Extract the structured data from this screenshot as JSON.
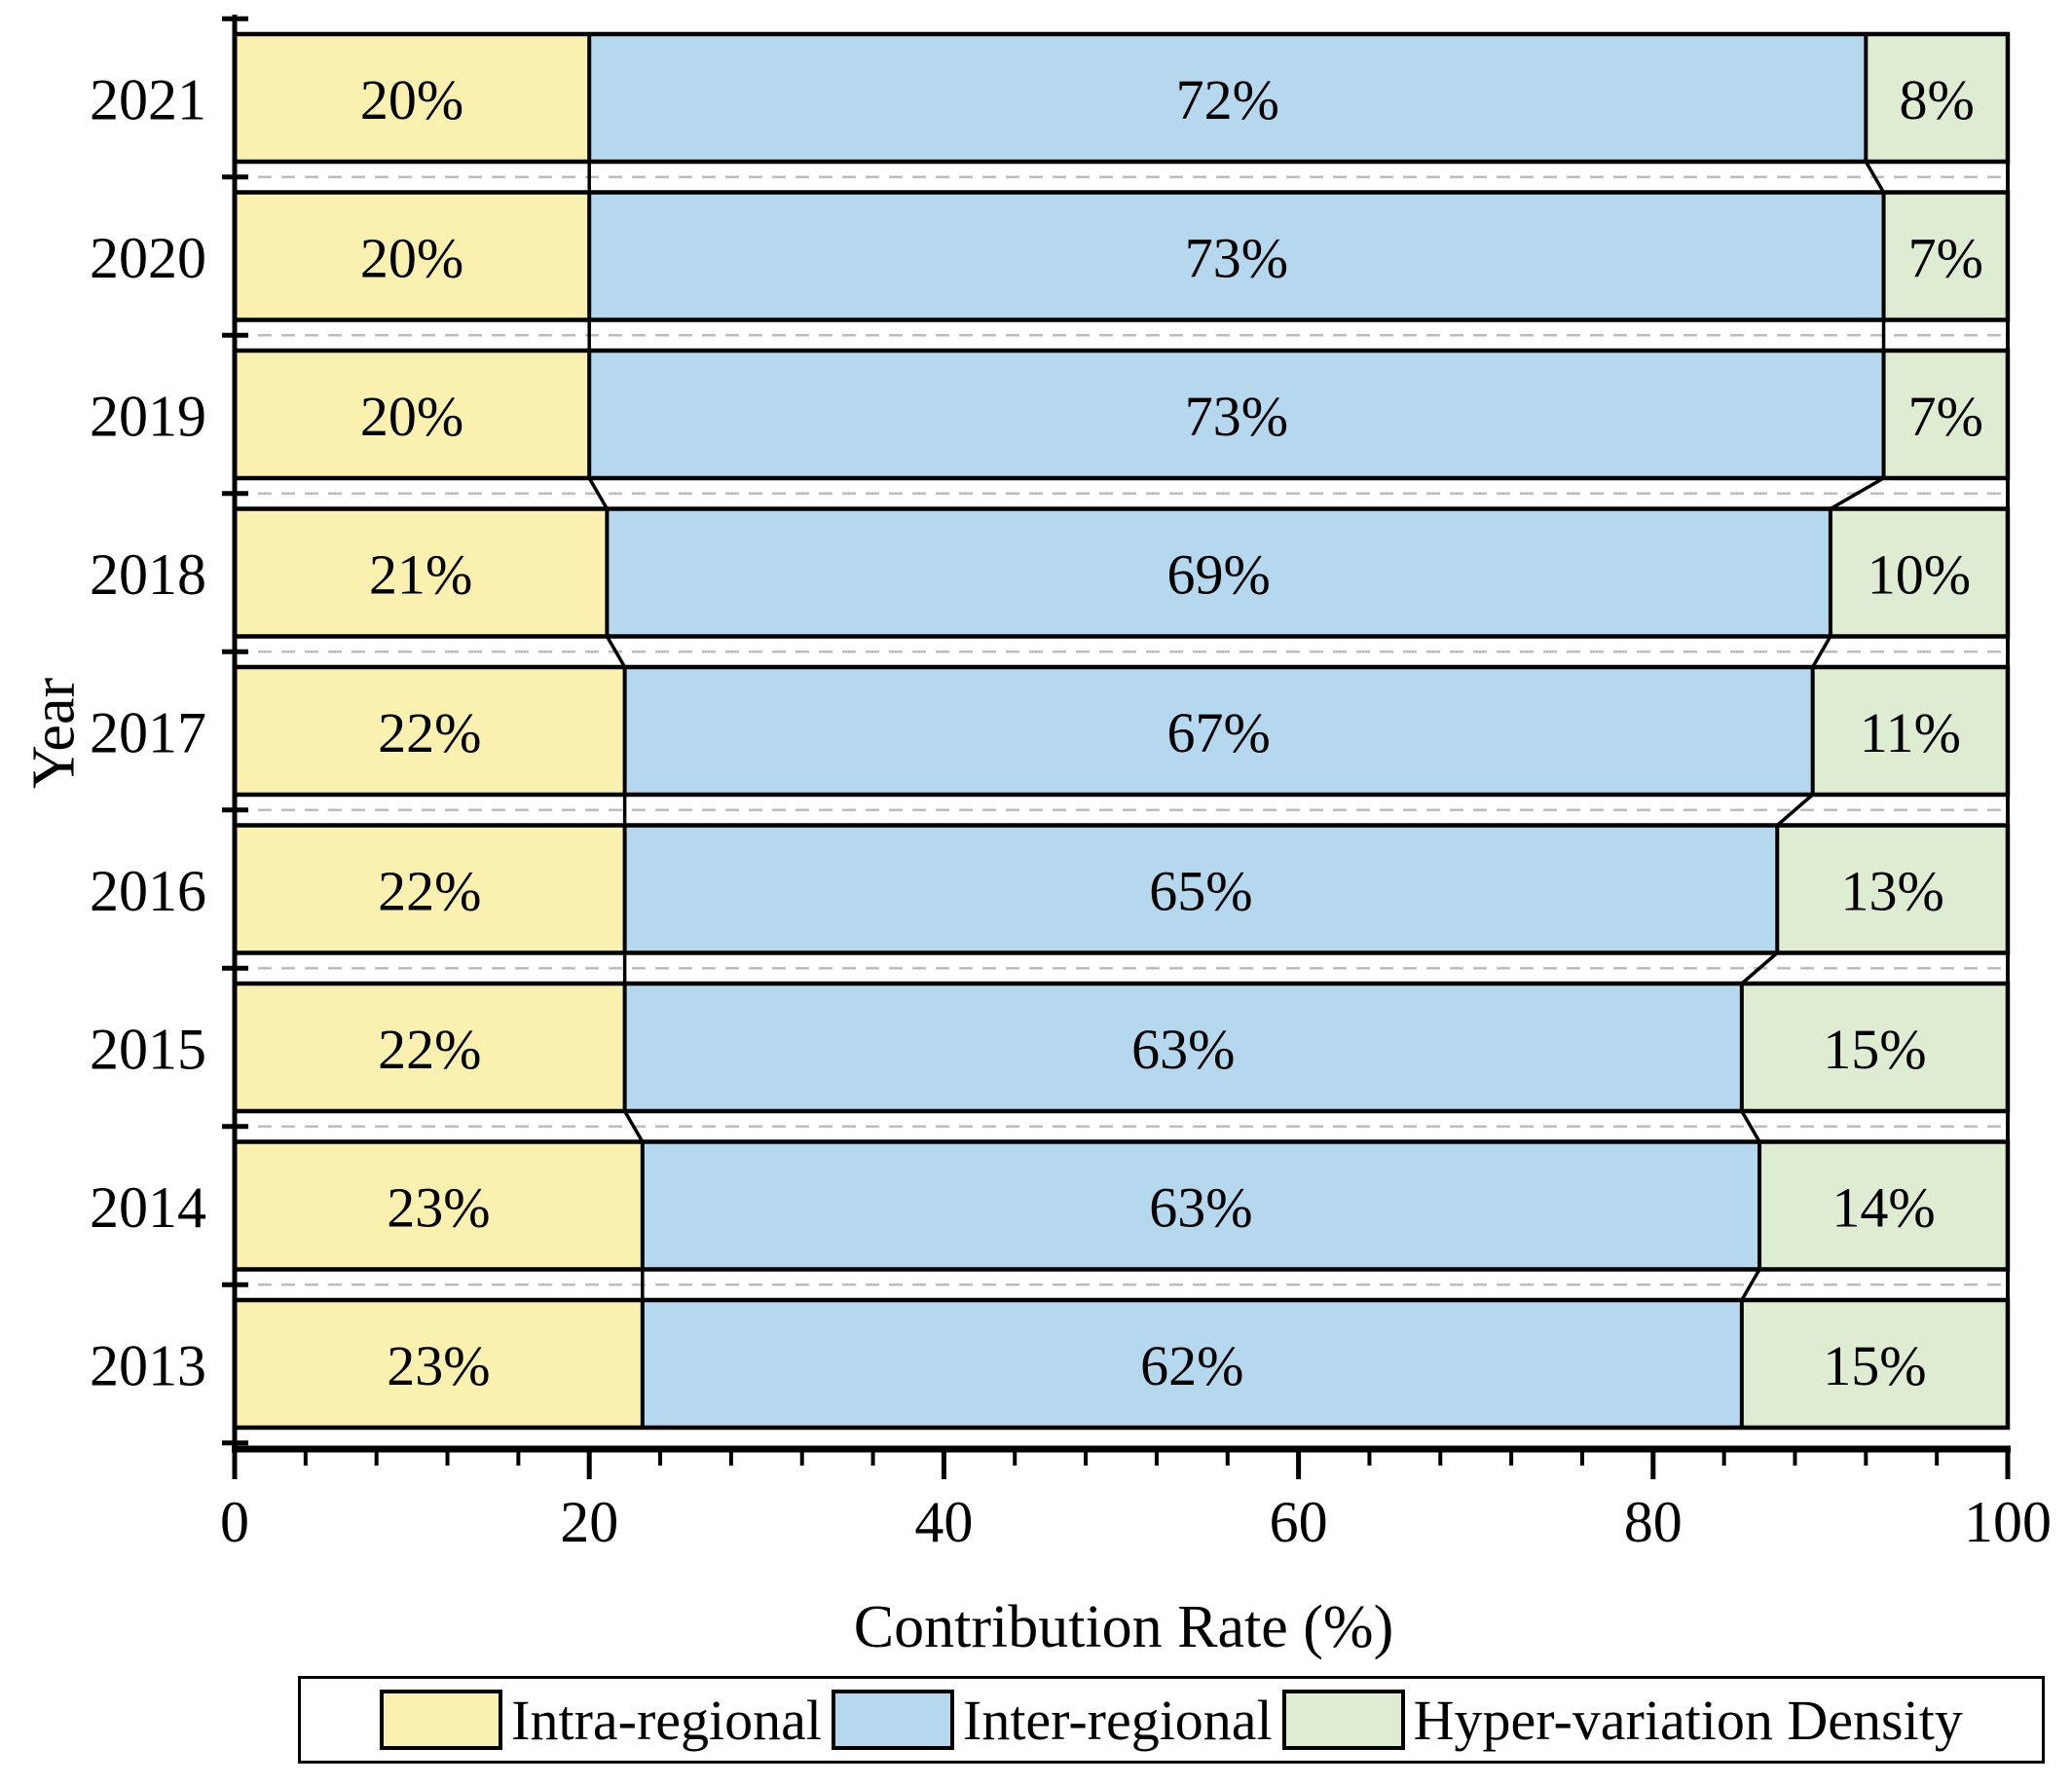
{
  "figure": {
    "xlabel": "Contribution Rate (%)",
    "ylabel": "Year"
  },
  "chart_data": {
    "type": "bar",
    "orientation": "horizontal",
    "stacked": true,
    "title": "",
    "xlabel": "Contribution Rate (%)",
    "ylabel": "Year",
    "xlim": [
      0,
      100
    ],
    "x_major_ticks": [
      0,
      20,
      40,
      60,
      80,
      100
    ],
    "x_minor_step": 4,
    "categories": [
      "2021",
      "2020",
      "2019",
      "2018",
      "2017",
      "2016",
      "2015",
      "2014",
      "2013"
    ],
    "series": [
      {
        "name": "Intra-regional",
        "color": "#FAF0AF",
        "values": [
          20,
          20,
          20,
          21,
          22,
          22,
          22,
          23,
          23
        ]
      },
      {
        "name": "Inter-regional",
        "color": "#B5D8EF",
        "values": [
          72,
          73,
          73,
          69,
          67,
          65,
          63,
          63,
          62
        ]
      },
      {
        "name": "Hyper-variation Density",
        "color": "#DEEDD2",
        "values": [
          8,
          7,
          7,
          10,
          11,
          13,
          15,
          14,
          15
        ]
      }
    ],
    "value_suffix": "%",
    "grid": "dashed horizontal line between each category row",
    "legend_position": "bottom",
    "bar_border_color": "#000000",
    "gridline_color": "#bdbdbd"
  }
}
